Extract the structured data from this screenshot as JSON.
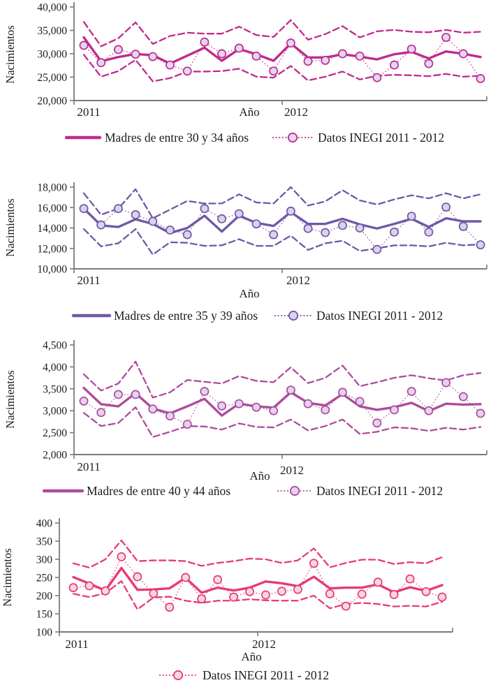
{
  "figure_title": "",
  "chart_data": [
    {
      "type": "line",
      "ylabel": "Nacimientos",
      "xlabel": "Año",
      "x_year_labels": [
        "2011",
        "2012"
      ],
      "y_tick_labels": [
        "40,000",
        "35,000",
        "30,000",
        "25,000",
        "20,000"
      ],
      "ylim": [
        20000,
        40000
      ],
      "color": "#C12B8D",
      "marker_fill": "#DFD8F0",
      "legend": [
        {
          "swatch": "solid-line",
          "label": "Madres de entre 30 y 34 años"
        },
        {
          "swatch": "dotted-marker",
          "label": "Datos INEGI 2011 - 2012"
        }
      ],
      "series": [
        {
          "name": "model",
          "style": "solid",
          "in_legend": true,
          "values": [
            33500,
            28400,
            29300,
            29950,
            29700,
            27900,
            29600,
            31300,
            28500,
            31000,
            29900,
            28500,
            32200,
            29200,
            29200,
            29900,
            29400,
            28800,
            29900,
            30400,
            29000,
            30500,
            30000,
            29300
          ]
        },
        {
          "name": "upper-bound",
          "style": "dashed",
          "in_legend": false,
          "values": [
            36800,
            31600,
            33300,
            36700,
            32100,
            33800,
            34500,
            34300,
            34300,
            35800,
            34000,
            33600,
            37200,
            33000,
            34200,
            35900,
            33500,
            34800,
            35100,
            34700,
            34600,
            35100,
            34500,
            34700
          ]
        },
        {
          "name": "lower-bound",
          "style": "dashed",
          "in_legend": false,
          "values": [
            29800,
            25100,
            26300,
            28700,
            24100,
            24800,
            26200,
            26200,
            26300,
            26800,
            25100,
            24900,
            27400,
            24300,
            25100,
            26200,
            24500,
            25300,
            25500,
            25400,
            25200,
            25700,
            25100,
            25300
          ]
        },
        {
          "name": "inegi-data",
          "style": "dotted-marker",
          "in_legend": true,
          "values": [
            31800,
            28100,
            30900,
            29900,
            29400,
            27600,
            26300,
            32500,
            30000,
            31200,
            29500,
            26300,
            32300,
            28400,
            28600,
            30000,
            29500,
            24900,
            27600,
            31000,
            27900,
            33500,
            30000,
            24700
          ]
        }
      ]
    },
    {
      "type": "line",
      "ylabel": "Nacimientos",
      "xlabel": "Año",
      "x_year_labels": [
        "2011",
        "2012"
      ],
      "y_tick_labels": [
        "18,000",
        "16,000",
        "14,000",
        "12,000",
        "10,000"
      ],
      "ylim": [
        10000,
        18000
      ],
      "color": "#7059A6",
      "marker_fill": "#D9D3EC",
      "legend": [
        {
          "swatch": "solid-line",
          "label": "Madres de entre 35 y 39 años"
        },
        {
          "swatch": "dotted-marker",
          "label": "Datos INEGI 2011 - 2012"
        }
      ],
      "series": [
        {
          "name": "model",
          "style": "solid",
          "in_legend": true,
          "values": [
            15900,
            14250,
            14100,
            14850,
            14400,
            13500,
            14000,
            15200,
            13650,
            15200,
            14500,
            14200,
            15550,
            14400,
            14400,
            14900,
            14350,
            13950,
            14400,
            14900,
            14100,
            14950,
            14650,
            14650
          ]
        },
        {
          "name": "upper-bound",
          "style": "dashed",
          "in_legend": false,
          "values": [
            17400,
            15300,
            15900,
            17800,
            14950,
            15800,
            16650,
            16400,
            16400,
            17300,
            16500,
            16400,
            18000,
            16200,
            16600,
            17700,
            16700,
            16300,
            16800,
            17200,
            16900,
            17400,
            16900,
            17300
          ]
        },
        {
          "name": "lower-bound",
          "style": "dashed",
          "in_legend": false,
          "values": [
            13900,
            12200,
            12500,
            13900,
            11400,
            12600,
            12550,
            12250,
            12300,
            12900,
            12250,
            12250,
            13250,
            11850,
            12500,
            12750,
            11750,
            12000,
            12300,
            12300,
            12200,
            12550,
            12300,
            12400
          ]
        },
        {
          "name": "inegi-data",
          "style": "dotted-marker",
          "in_legend": true,
          "values": [
            15900,
            14300,
            15900,
            15300,
            14650,
            13800,
            13350,
            15900,
            14900,
            15400,
            14400,
            13350,
            15650,
            13950,
            13550,
            14250,
            14000,
            11900,
            13600,
            15150,
            13600,
            16050,
            14150,
            12350
          ]
        }
      ]
    },
    {
      "type": "line",
      "ylabel": "Nacimientos",
      "xlabel": "Año",
      "x_year_labels": [
        "2011",
        "2012"
      ],
      "y_tick_labels": [
        "4,500",
        "4,000",
        "3,500",
        "3,000",
        "2,500",
        "2,000"
      ],
      "ylim": [
        2000,
        4500
      ],
      "color": "#AE4C9D",
      "marker_fill": "#E3D4EC",
      "legend": [
        {
          "swatch": "solid-line",
          "label": "Madres de entre 40 y 44 años"
        },
        {
          "swatch": "dotted-marker",
          "label": "Datos INEGI 2011 - 2012"
        }
      ],
      "series": [
        {
          "name": "model",
          "style": "solid",
          "in_legend": true,
          "values": [
            3520,
            3150,
            3100,
            3400,
            3050,
            2940,
            3100,
            3270,
            2890,
            3160,
            3100,
            3070,
            3420,
            3180,
            3120,
            3380,
            3100,
            3020,
            3080,
            3180,
            2990,
            3160,
            3140,
            3150
          ]
        },
        {
          "name": "upper-bound",
          "style": "dashed",
          "in_legend": false,
          "values": [
            3830,
            3460,
            3620,
            4120,
            3300,
            3420,
            3700,
            3660,
            3620,
            3790,
            3680,
            3650,
            3990,
            3630,
            3750,
            4030,
            3560,
            3650,
            3750,
            3810,
            3740,
            3690,
            3810,
            3860
          ]
        },
        {
          "name": "lower-bound",
          "style": "dashed",
          "in_legend": false,
          "values": [
            2950,
            2650,
            2720,
            3080,
            2400,
            2520,
            2650,
            2640,
            2570,
            2710,
            2630,
            2620,
            2800,
            2550,
            2650,
            2800,
            2470,
            2520,
            2620,
            2600,
            2540,
            2610,
            2570,
            2630
          ]
        },
        {
          "name": "inegi-data",
          "style": "dotted-marker",
          "in_legend": true,
          "values": [
            3220,
            2960,
            3370,
            3370,
            3040,
            2880,
            2690,
            3440,
            3110,
            3160,
            3080,
            3000,
            3470,
            3160,
            3020,
            3420,
            3210,
            2720,
            3020,
            3440,
            3000,
            3640,
            3320,
            2940
          ]
        }
      ]
    },
    {
      "type": "line",
      "ylabel": "Nacimientos",
      "xlabel": "Año",
      "x_year_labels": [
        "2011",
        "2012"
      ],
      "y_tick_labels": [
        "400",
        "350",
        "300",
        "250",
        "200",
        "150",
        "100"
      ],
      "ylim": [
        100,
        400
      ],
      "color": "#E83A78",
      "marker_fill": "#F5D8E4",
      "legend": [
        {
          "swatch": "dotted-marker",
          "label": "Datos INEGI 2011 - 2012"
        }
      ],
      "series": [
        {
          "name": "model",
          "style": "solid",
          "in_legend": false,
          "values": [
            251,
            233,
            214,
            276,
            216,
            217,
            220,
            249,
            208,
            222,
            214,
            222,
            239,
            234,
            226,
            252,
            220,
            222,
            222,
            231,
            209,
            223,
            213,
            229
          ]
        },
        {
          "name": "upper-bound",
          "style": "dashed",
          "in_legend": false,
          "values": [
            289,
            277,
            300,
            352,
            295,
            297,
            297,
            295,
            282,
            290,
            295,
            302,
            300,
            290,
            297,
            330,
            278,
            290,
            299,
            299,
            287,
            292,
            289,
            306
          ]
        },
        {
          "name": "lower-bound",
          "style": "dashed",
          "in_legend": false,
          "values": [
            205,
            196,
            207,
            240,
            162,
            195,
            197,
            186,
            180,
            186,
            186,
            190,
            187,
            186,
            186,
            200,
            165,
            177,
            180,
            177,
            170,
            172,
            170,
            183
          ]
        },
        {
          "name": "inegi-data",
          "style": "dotted-marker",
          "in_legend": true,
          "values": [
            222,
            227,
            213,
            307,
            252,
            206,
            168,
            250,
            191,
            244,
            196,
            211,
            202,
            212,
            217,
            289,
            205,
            171,
            204,
            237,
            203,
            246,
            211,
            196
          ]
        }
      ]
    }
  ]
}
